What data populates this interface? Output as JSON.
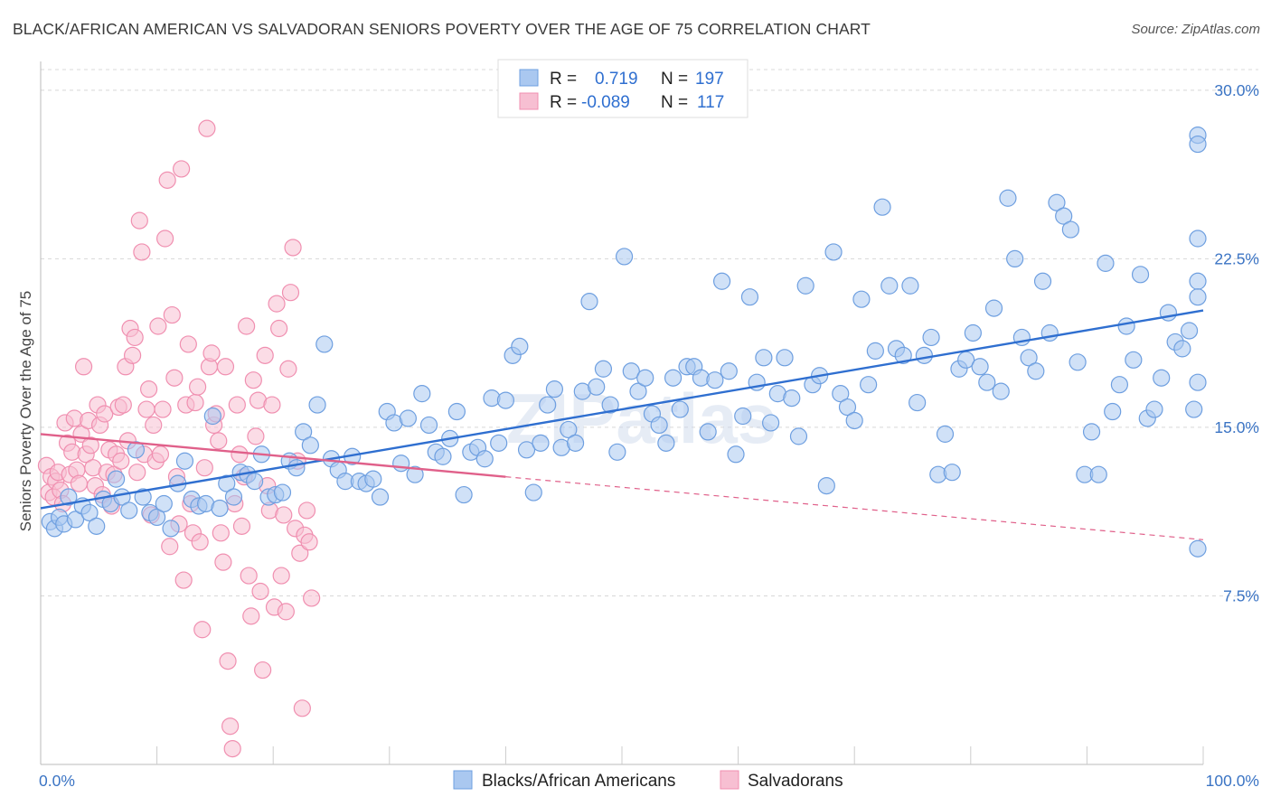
{
  "title": "BLACK/AFRICAN AMERICAN VS SALVADORAN SENIORS POVERTY OVER THE AGE OF 75 CORRELATION CHART",
  "source": "Source: ZipAtlas.com",
  "watermark": "ZIPatlas",
  "chart_data": {
    "type": "scatter",
    "ylabel": "Seniors Poverty Over the Age of 75",
    "xlim": [
      0,
      100
    ],
    "ylim": [
      0,
      31
    ],
    "x_tick_labels": [
      "0.0%",
      "100.0%"
    ],
    "y_ticks": [
      7.5,
      15.0,
      22.5,
      30.0
    ],
    "y_tick_labels": [
      "7.5%",
      "15.0%",
      "22.5%",
      "30.0%"
    ],
    "grid": true,
    "legend": {
      "placement": "top-center",
      "entries": [
        {
          "r_label": "R =",
          "r": "0.719",
          "n_label": "N =",
          "n": "197",
          "color": "#6e9fe0"
        },
        {
          "r_label": "R =",
          "r": "-0.089",
          "n_label": "N =",
          "n": "117",
          "color": "#f08fb0"
        }
      ]
    },
    "series": [
      {
        "name": "Blacks/African Americans",
        "color": "#6e9fe0",
        "fill": "#aac8f0",
        "trend": {
          "x": [
            0,
            100
          ],
          "y": [
            11.4,
            20.2
          ],
          "color": "#2f6fd0"
        },
        "points": [
          [
            0.8,
            10.8
          ],
          [
            1.2,
            10.5
          ],
          [
            1.6,
            11.0
          ],
          [
            2.0,
            10.7
          ],
          [
            2.4,
            11.9
          ],
          [
            3.0,
            10.9
          ],
          [
            3.6,
            11.5
          ],
          [
            4.2,
            11.2
          ],
          [
            4.8,
            10.6
          ],
          [
            5.4,
            11.8
          ],
          [
            6.0,
            11.6
          ],
          [
            6.5,
            12.7
          ],
          [
            7.0,
            11.9
          ],
          [
            7.6,
            11.3
          ],
          [
            8.2,
            14.0
          ],
          [
            8.8,
            11.9
          ],
          [
            9.4,
            11.2
          ],
          [
            10.0,
            11.0
          ],
          [
            10.6,
            11.6
          ],
          [
            11.2,
            10.5
          ],
          [
            11.8,
            12.5
          ],
          [
            12.4,
            13.5
          ],
          [
            13.0,
            11.8
          ],
          [
            13.6,
            11.5
          ],
          [
            14.2,
            11.6
          ],
          [
            14.8,
            15.5
          ],
          [
            15.4,
            11.4
          ],
          [
            16.0,
            12.5
          ],
          [
            16.6,
            11.9
          ],
          [
            17.2,
            13.0
          ],
          [
            17.8,
            12.9
          ],
          [
            18.4,
            12.6
          ],
          [
            19.0,
            13.8
          ],
          [
            19.6,
            11.9
          ],
          [
            20.2,
            12.0
          ],
          [
            20.8,
            12.1
          ],
          [
            21.4,
            13.5
          ],
          [
            22.0,
            13.2
          ],
          [
            22.6,
            14.8
          ],
          [
            23.2,
            14.2
          ],
          [
            23.8,
            16.0
          ],
          [
            24.4,
            18.7
          ],
          [
            25.0,
            13.6
          ],
          [
            25.6,
            13.1
          ],
          [
            26.2,
            12.6
          ],
          [
            26.8,
            13.7
          ],
          [
            27.4,
            12.6
          ],
          [
            28.0,
            12.5
          ],
          [
            28.6,
            12.7
          ],
          [
            29.2,
            11.9
          ],
          [
            29.8,
            15.7
          ],
          [
            30.4,
            15.2
          ],
          [
            31.0,
            13.4
          ],
          [
            31.6,
            15.4
          ],
          [
            32.2,
            12.9
          ],
          [
            32.8,
            16.5
          ],
          [
            33.4,
            15.1
          ],
          [
            34.0,
            13.9
          ],
          [
            34.6,
            13.7
          ],
          [
            35.2,
            14.5
          ],
          [
            35.8,
            15.7
          ],
          [
            36.4,
            12.0
          ],
          [
            37.0,
            13.9
          ],
          [
            37.6,
            14.1
          ],
          [
            38.2,
            13.6
          ],
          [
            38.8,
            16.3
          ],
          [
            39.4,
            14.3
          ],
          [
            40.0,
            16.2
          ],
          [
            40.6,
            18.2
          ],
          [
            41.2,
            18.6
          ],
          [
            41.8,
            14.0
          ],
          [
            42.4,
            12.1
          ],
          [
            43.0,
            14.3
          ],
          [
            43.6,
            16.0
          ],
          [
            44.2,
            16.7
          ],
          [
            44.8,
            14.1
          ],
          [
            45.4,
            14.9
          ],
          [
            46.0,
            14.3
          ],
          [
            46.6,
            16.6
          ],
          [
            47.2,
            20.6
          ],
          [
            47.8,
            16.8
          ],
          [
            48.4,
            17.6
          ],
          [
            49.0,
            16.0
          ],
          [
            49.6,
            13.9
          ],
          [
            50.2,
            22.6
          ],
          [
            50.8,
            17.5
          ],
          [
            51.4,
            16.6
          ],
          [
            52.0,
            17.2
          ],
          [
            52.6,
            15.6
          ],
          [
            53.2,
            15.1
          ],
          [
            53.8,
            14.3
          ],
          [
            54.4,
            17.2
          ],
          [
            55.0,
            15.8
          ],
          [
            55.6,
            17.7
          ],
          [
            56.2,
            17.7
          ],
          [
            56.8,
            17.2
          ],
          [
            57.4,
            14.8
          ],
          [
            58.0,
            17.1
          ],
          [
            58.6,
            21.5
          ],
          [
            59.2,
            17.5
          ],
          [
            59.8,
            13.8
          ],
          [
            60.4,
            15.5
          ],
          [
            61.0,
            20.8
          ],
          [
            61.6,
            17.0
          ],
          [
            62.2,
            18.1
          ],
          [
            62.8,
            15.2
          ],
          [
            63.4,
            16.5
          ],
          [
            64.0,
            18.1
          ],
          [
            64.6,
            16.3
          ],
          [
            65.2,
            14.6
          ],
          [
            65.8,
            21.3
          ],
          [
            66.4,
            16.9
          ],
          [
            67.0,
            17.3
          ],
          [
            67.6,
            12.4
          ],
          [
            68.2,
            22.8
          ],
          [
            68.8,
            16.5
          ],
          [
            69.4,
            15.9
          ],
          [
            70.0,
            15.3
          ],
          [
            70.6,
            20.7
          ],
          [
            71.2,
            16.9
          ],
          [
            71.8,
            18.4
          ],
          [
            72.4,
            24.8
          ],
          [
            73.0,
            21.3
          ],
          [
            73.6,
            18.5
          ],
          [
            74.2,
            18.2
          ],
          [
            74.8,
            21.3
          ],
          [
            75.4,
            16.1
          ],
          [
            76.0,
            18.2
          ],
          [
            76.6,
            19.0
          ],
          [
            77.2,
            12.9
          ],
          [
            77.8,
            14.7
          ],
          [
            78.4,
            13.0
          ],
          [
            79.0,
            17.6
          ],
          [
            79.6,
            18.0
          ],
          [
            80.2,
            19.2
          ],
          [
            80.8,
            17.7
          ],
          [
            81.4,
            17.0
          ],
          [
            82.0,
            20.3
          ],
          [
            82.6,
            16.6
          ],
          [
            83.2,
            25.2
          ],
          [
            83.8,
            22.5
          ],
          [
            84.4,
            19.0
          ],
          [
            85.0,
            18.1
          ],
          [
            85.6,
            17.5
          ],
          [
            86.2,
            21.5
          ],
          [
            86.8,
            19.2
          ],
          [
            87.4,
            25.0
          ],
          [
            88.0,
            24.4
          ],
          [
            88.6,
            23.8
          ],
          [
            89.2,
            17.9
          ],
          [
            89.8,
            12.9
          ],
          [
            90.4,
            14.8
          ],
          [
            91.0,
            12.9
          ],
          [
            91.6,
            22.3
          ],
          [
            92.2,
            15.7
          ],
          [
            92.8,
            16.9
          ],
          [
            93.4,
            19.5
          ],
          [
            94.0,
            18.0
          ],
          [
            94.6,
            21.8
          ],
          [
            95.2,
            15.4
          ],
          [
            95.8,
            15.8
          ],
          [
            96.4,
            17.2
          ],
          [
            97.0,
            20.1
          ],
          [
            97.6,
            18.8
          ],
          [
            98.2,
            18.5
          ],
          [
            98.8,
            19.3
          ],
          [
            99.2,
            15.8
          ],
          [
            99.6,
            17.0
          ],
          [
            100.0,
            21.5
          ],
          [
            100.5,
            9.6
          ],
          [
            101.0,
            28.0
          ],
          [
            101.5,
            20.8
          ],
          [
            102.0,
            23.4
          ],
          [
            102.5,
            27.6
          ]
        ]
      },
      {
        "name": "Salvadorans",
        "color": "#f08fb0",
        "fill": "#f7bfd2",
        "trend": {
          "x": [
            0,
            40
          ],
          "y": [
            14.7,
            12.8
          ],
          "color": "#e0608a",
          "dashed_extension": {
            "x": [
              40,
              100
            ],
            "y": [
              12.8,
              10.0
            ]
          }
        },
        "points": [
          [
            0.5,
            13.3
          ],
          [
            0.7,
            12.1
          ],
          [
            0.9,
            12.8
          ],
          [
            1.1,
            11.9
          ],
          [
            1.3,
            12.6
          ],
          [
            1.5,
            13.0
          ],
          [
            1.7,
            12.2
          ],
          [
            1.9,
            11.6
          ],
          [
            2.1,
            15.2
          ],
          [
            2.3,
            14.3
          ],
          [
            2.5,
            12.9
          ],
          [
            2.7,
            13.9
          ],
          [
            2.9,
            15.4
          ],
          [
            3.1,
            13.1
          ],
          [
            3.3,
            12.5
          ],
          [
            3.5,
            14.7
          ],
          [
            3.7,
            17.7
          ],
          [
            3.9,
            13.8
          ],
          [
            4.1,
            15.3
          ],
          [
            4.3,
            14.2
          ],
          [
            4.5,
            13.2
          ],
          [
            4.7,
            12.4
          ],
          [
            4.9,
            16.0
          ],
          [
            5.1,
            15.1
          ],
          [
            5.3,
            12.0
          ],
          [
            5.5,
            15.6
          ],
          [
            5.7,
            13.0
          ],
          [
            5.9,
            14.0
          ],
          [
            6.1,
            11.5
          ],
          [
            6.3,
            12.9
          ],
          [
            6.5,
            13.8
          ],
          [
            6.7,
            15.9
          ],
          [
            6.9,
            13.5
          ],
          [
            7.1,
            16.0
          ],
          [
            7.3,
            17.7
          ],
          [
            7.5,
            14.4
          ],
          [
            7.7,
            19.4
          ],
          [
            7.9,
            18.2
          ],
          [
            8.1,
            19.0
          ],
          [
            8.3,
            13.0
          ],
          [
            8.5,
            24.2
          ],
          [
            8.7,
            22.8
          ],
          [
            8.9,
            13.8
          ],
          [
            9.1,
            15.8
          ],
          [
            9.3,
            16.7
          ],
          [
            9.5,
            11.1
          ],
          [
            9.7,
            15.1
          ],
          [
            9.9,
            13.5
          ],
          [
            10.1,
            19.5
          ],
          [
            10.3,
            13.8
          ],
          [
            10.5,
            15.8
          ],
          [
            10.7,
            23.4
          ],
          [
            10.9,
            26.0
          ],
          [
            11.1,
            9.7
          ],
          [
            11.3,
            20.0
          ],
          [
            11.5,
            17.2
          ],
          [
            11.7,
            12.8
          ],
          [
            11.9,
            10.7
          ],
          [
            12.1,
            26.5
          ],
          [
            12.3,
            8.2
          ],
          [
            12.5,
            16.0
          ],
          [
            12.7,
            18.7
          ],
          [
            12.9,
            11.6
          ],
          [
            13.1,
            10.3
          ],
          [
            13.3,
            16.1
          ],
          [
            13.5,
            16.8
          ],
          [
            13.7,
            9.9
          ],
          [
            13.9,
            6.0
          ],
          [
            14.1,
            13.2
          ],
          [
            14.3,
            28.3
          ],
          [
            14.5,
            17.7
          ],
          [
            14.7,
            18.3
          ],
          [
            14.9,
            15.1
          ],
          [
            15.1,
            15.6
          ],
          [
            15.3,
            14.4
          ],
          [
            15.5,
            10.3
          ],
          [
            15.7,
            9.0
          ],
          [
            15.9,
            17.7
          ],
          [
            16.1,
            4.6
          ],
          [
            16.3,
            1.7
          ],
          [
            16.5,
            0.7
          ],
          [
            16.7,
            11.6
          ],
          [
            16.9,
            16.0
          ],
          [
            17.1,
            13.8
          ],
          [
            17.3,
            10.6
          ],
          [
            17.5,
            12.8
          ],
          [
            17.7,
            19.5
          ],
          [
            17.9,
            8.4
          ],
          [
            18.1,
            6.6
          ],
          [
            18.3,
            17.1
          ],
          [
            18.5,
            14.6
          ],
          [
            18.7,
            16.2
          ],
          [
            18.9,
            7.7
          ],
          [
            19.1,
            4.2
          ],
          [
            19.3,
            18.2
          ],
          [
            19.5,
            12.4
          ],
          [
            19.7,
            11.3
          ],
          [
            19.9,
            16.0
          ],
          [
            20.1,
            7.0
          ],
          [
            20.3,
            20.5
          ],
          [
            20.5,
            19.4
          ],
          [
            20.7,
            8.4
          ],
          [
            20.9,
            11.1
          ],
          [
            21.1,
            6.8
          ],
          [
            21.3,
            17.6
          ],
          [
            21.5,
            21.0
          ],
          [
            21.7,
            23.0
          ],
          [
            21.9,
            10.5
          ],
          [
            22.1,
            13.5
          ],
          [
            22.3,
            9.4
          ],
          [
            22.5,
            2.5
          ],
          [
            22.7,
            10.2
          ],
          [
            22.9,
            11.3
          ],
          [
            23.1,
            9.9
          ],
          [
            23.3,
            7.4
          ]
        ]
      }
    ]
  },
  "bottom_legend": [
    "Blacks/African Americans",
    "Salvadorans"
  ]
}
